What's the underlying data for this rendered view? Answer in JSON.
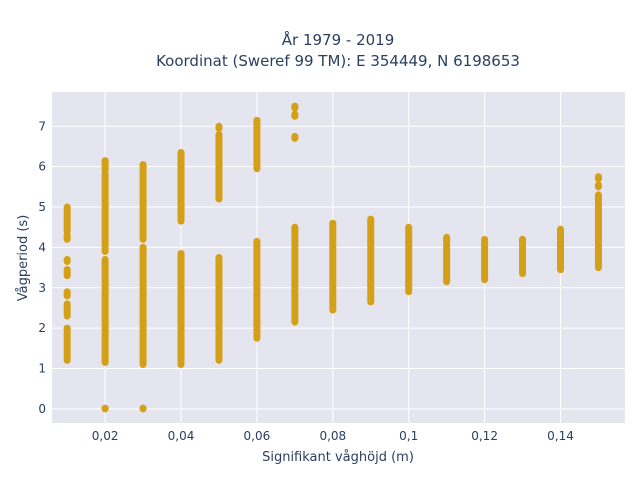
{
  "chart_data": {
    "type": "scatter",
    "title": "År 1979 - 2019",
    "subtitle": "Koordinat (Sweref 99 TM): E 354449, N 6198653",
    "xlabel": "Signifikant våghöjd (m)",
    "ylabel": "Vågperiod (s)",
    "xlim": [
      0.006,
      0.157
    ],
    "ylim": [
      -0.35,
      7.85
    ],
    "x_ticks": [
      0.02,
      0.04,
      0.06,
      0.08,
      0.1,
      0.12,
      0.14
    ],
    "x_tick_labels": [
      "0,02",
      "0,04",
      "0,06",
      "0,08",
      "0,1",
      "0,12",
      "0,14"
    ],
    "y_ticks": [
      0,
      1,
      2,
      3,
      4,
      5,
      6,
      7
    ],
    "y_tick_labels": [
      "0",
      "1",
      "2",
      "3",
      "4",
      "5",
      "6",
      "7"
    ],
    "grid": true,
    "marker_color": "#D4A017",
    "plot_background": "#E5E5F0",
    "columns": [
      {
        "x": 0.01,
        "ranges": [
          [
            1.2,
            2.0
          ],
          [
            2.3,
            2.6
          ],
          [
            2.8,
            2.9
          ],
          [
            3.3,
            3.45
          ],
          [
            3.65,
            3.7
          ],
          [
            4.2,
            4.3
          ],
          [
            4.4,
            4.6
          ],
          [
            4.65,
            5.0
          ]
        ]
      },
      {
        "x": 0.02,
        "ranges": [
          [
            1.15,
            3.7
          ],
          [
            3.9,
            5.8
          ],
          [
            5.9,
            6.15
          ],
          [
            0.0,
            0.02
          ]
        ]
      },
      {
        "x": 0.03,
        "ranges": [
          [
            1.1,
            3.8
          ],
          [
            3.85,
            4.0
          ],
          [
            4.2,
            6.05
          ],
          [
            0.0,
            0.02
          ]
        ]
      },
      {
        "x": 0.04,
        "ranges": [
          [
            1.1,
            3.85
          ],
          [
            4.65,
            6.35
          ]
        ]
      },
      {
        "x": 0.05,
        "ranges": [
          [
            1.2,
            3.75
          ],
          [
            5.2,
            6.8
          ],
          [
            6.95,
            7.0
          ]
        ]
      },
      {
        "x": 0.06,
        "ranges": [
          [
            1.75,
            4.15
          ],
          [
            5.95,
            7.15
          ]
        ]
      },
      {
        "x": 0.07,
        "ranges": [
          [
            2.15,
            4.5
          ],
          [
            6.7,
            6.75
          ],
          [
            7.25,
            7.3
          ],
          [
            7.45,
            7.5
          ]
        ]
      },
      {
        "x": 0.08,
        "ranges": [
          [
            2.45,
            4.6
          ]
        ]
      },
      {
        "x": 0.09,
        "ranges": [
          [
            2.65,
            4.7
          ]
        ]
      },
      {
        "x": 0.1,
        "ranges": [
          [
            2.9,
            4.5
          ]
        ]
      },
      {
        "x": 0.11,
        "ranges": [
          [
            3.15,
            4.25
          ]
        ]
      },
      {
        "x": 0.12,
        "ranges": [
          [
            3.2,
            4.2
          ]
        ]
      },
      {
        "x": 0.13,
        "ranges": [
          [
            3.35,
            4.2
          ]
        ]
      },
      {
        "x": 0.14,
        "ranges": [
          [
            3.45,
            4.45
          ]
        ]
      },
      {
        "x": 0.15,
        "ranges": [
          [
            3.5,
            5.3
          ],
          [
            5.5,
            5.55
          ],
          [
            5.7,
            5.75
          ]
        ]
      }
    ]
  }
}
